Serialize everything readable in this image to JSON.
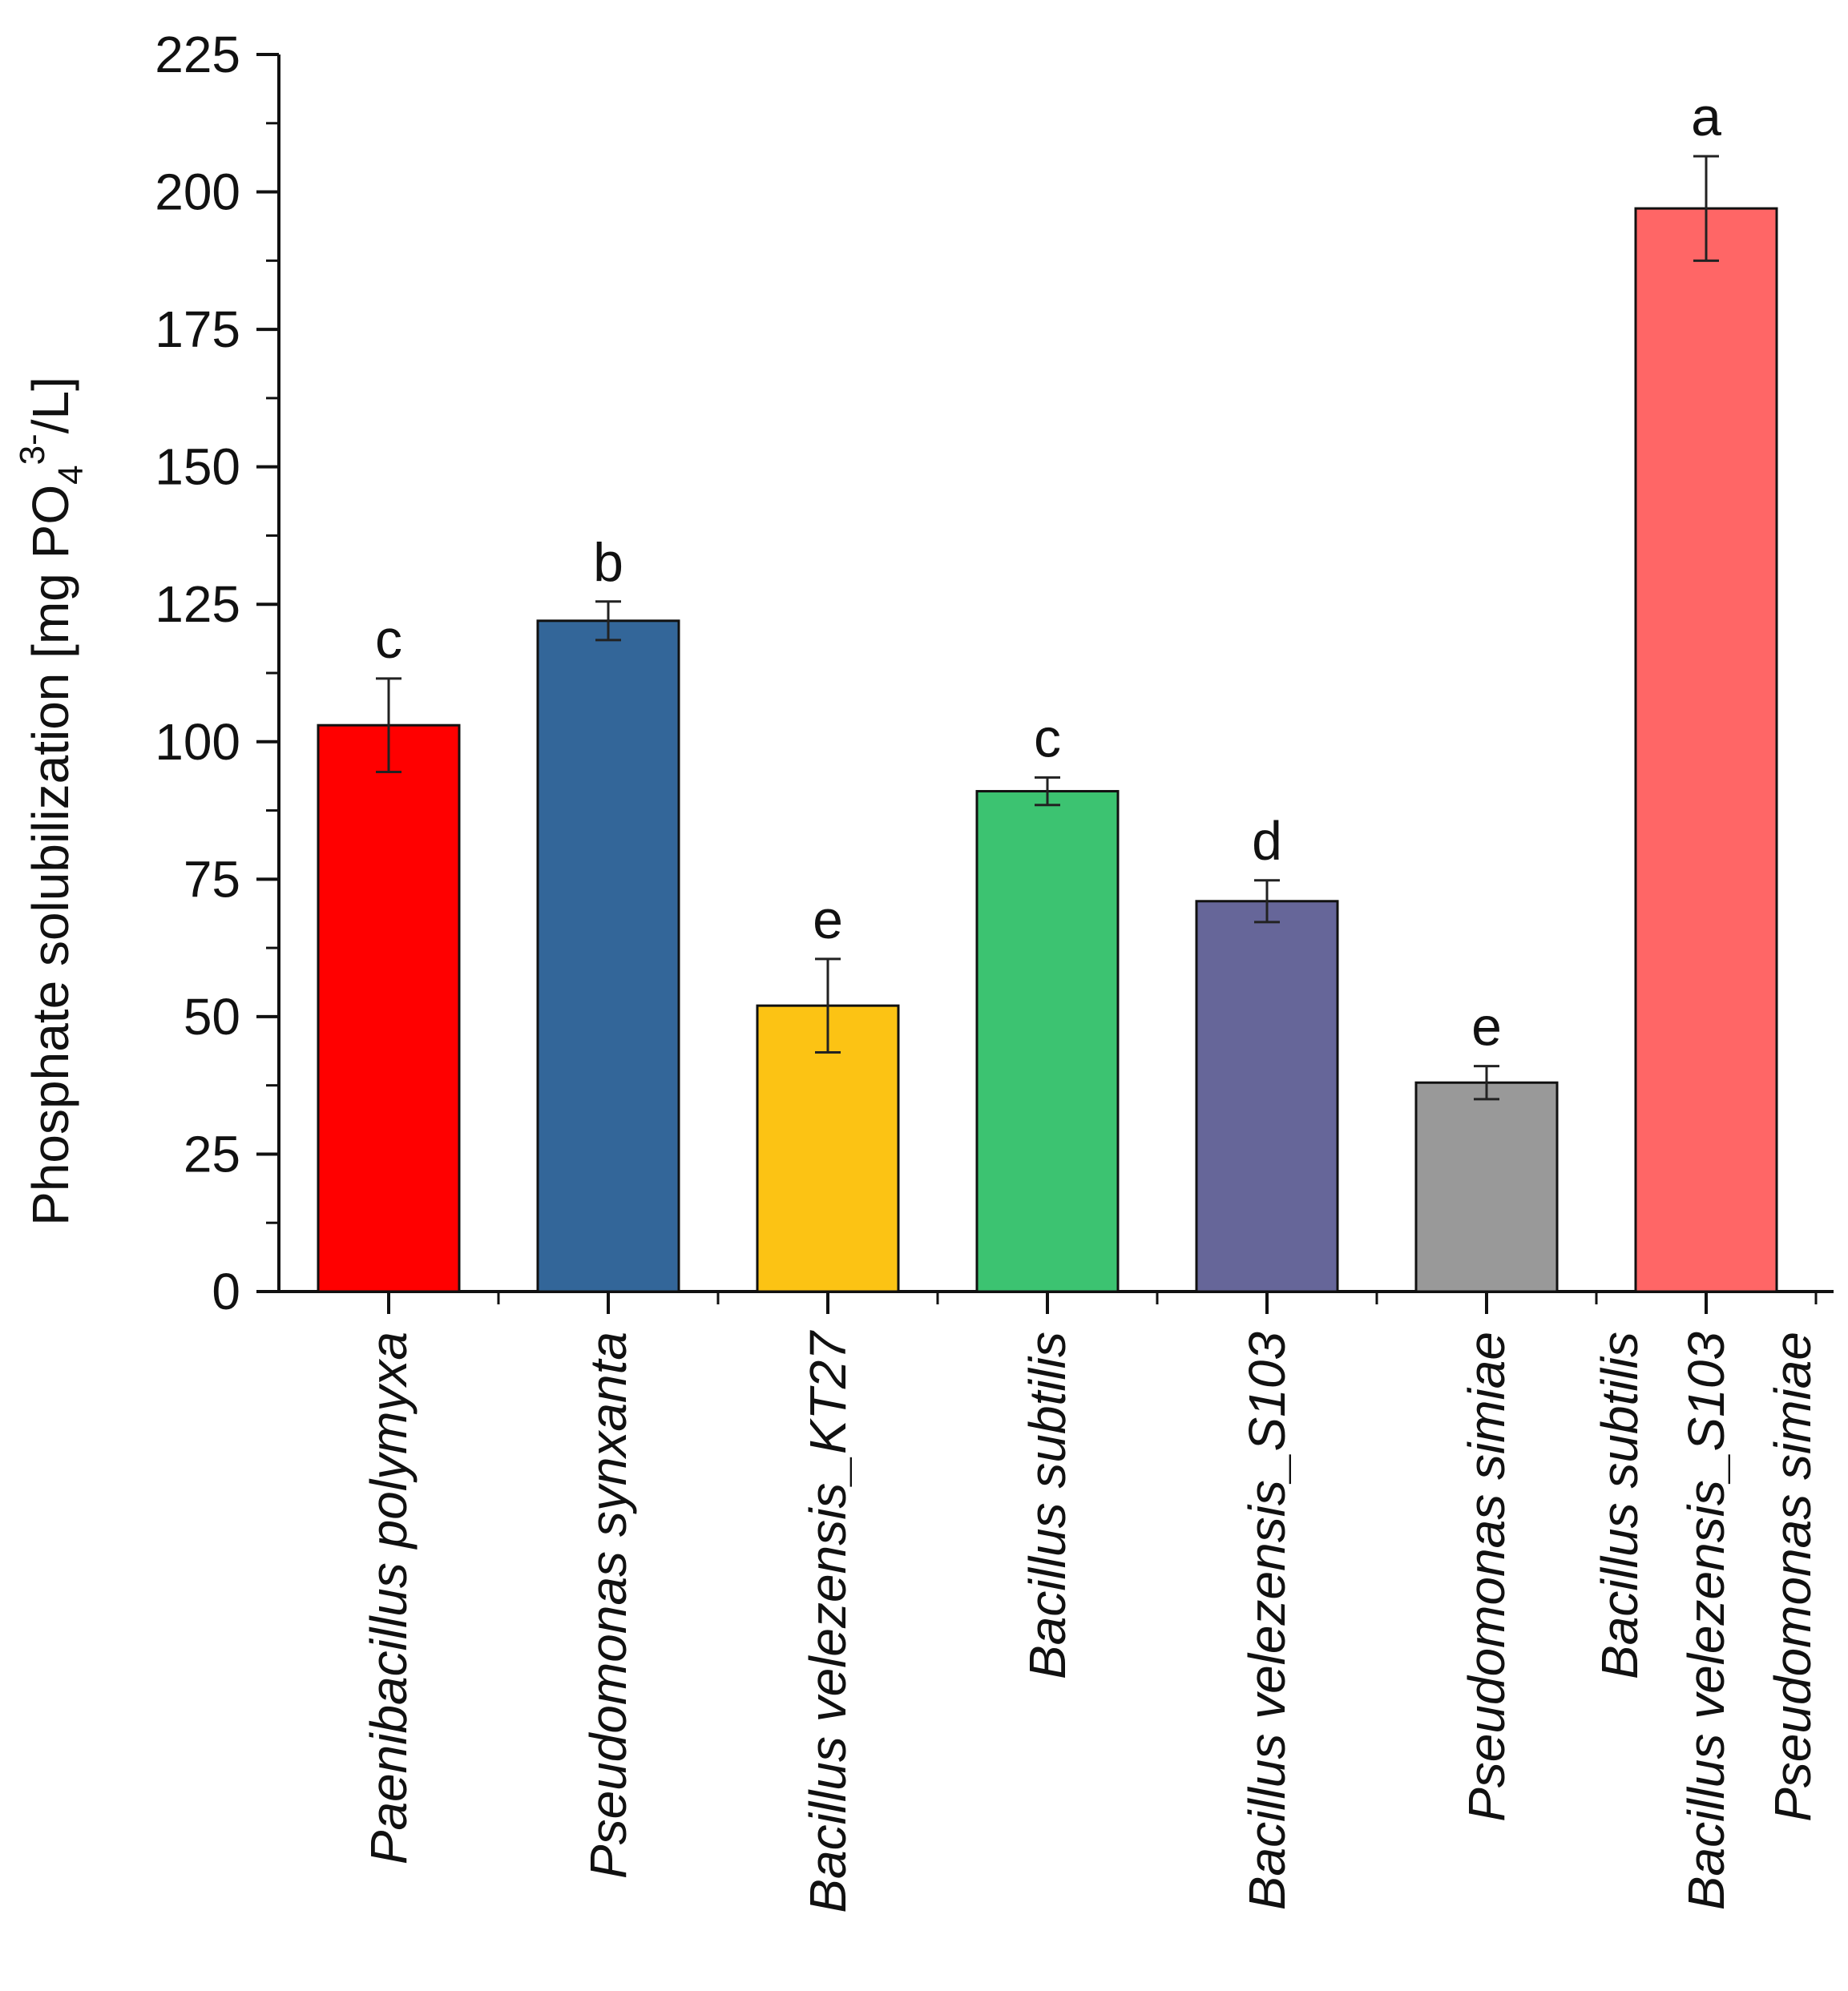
{
  "chart_data": {
    "type": "bar",
    "title": "",
    "xlabel": "",
    "ylabel": {
      "prefix": "Phosphate solubilization [mg PO",
      "subscript": "4",
      "superscript": "3-",
      "suffix": "/L]"
    },
    "ylim": [
      0,
      225
    ],
    "yticks": [
      "0",
      "25",
      "50",
      "75",
      "100",
      "125",
      "150",
      "175",
      "200",
      "225"
    ],
    "bars": [
      {
        "label_lines": [
          "Paenibacillus polymyxa"
        ],
        "value": 103,
        "error": 8.5,
        "sig": "c",
        "color": "#ff0000"
      },
      {
        "label_lines": [
          "Pseudomonas synxanta"
        ],
        "value": 122,
        "error": 3.5,
        "sig": "b",
        "color": "#336699"
      },
      {
        "label_lines": [
          "Bacillus velezensis_KT27"
        ],
        "value": 52,
        "error": 8.5,
        "sig": "e",
        "color": "#fcc314"
      },
      {
        "label_lines": [
          "Bacillus subtilis"
        ],
        "value": 91,
        "error": 2.5,
        "sig": "c",
        "color": "#3cc371"
      },
      {
        "label_lines": [
          "Bacillus velezensis_S103"
        ],
        "value": 71,
        "error": 3.8,
        "sig": "d",
        "color": "#666699"
      },
      {
        "label_lines": [
          "Pseudomonas simiae"
        ],
        "value": 38,
        "error": 3.0,
        "sig": "e",
        "color": "#999999"
      },
      {
        "label_lines": [
          "Bacillus subtilis",
          "Bacillus velezensis_S103",
          "Pseudomonas simiae"
        ],
        "value": 197,
        "error": 9.5,
        "sig": "a",
        "color": "#ff6666"
      }
    ]
  }
}
